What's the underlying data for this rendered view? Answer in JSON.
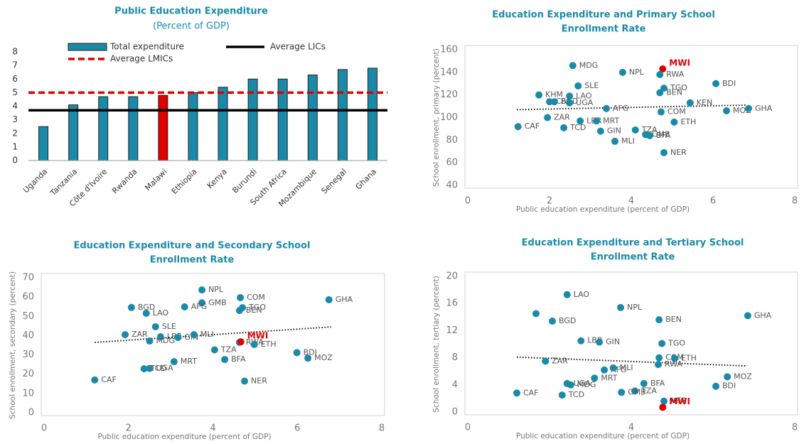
{
  "chart_data": [
    {
      "type": "bar",
      "title": [
        "Public Education Expenditure"
      ],
      "subtitle": "(Percent of GDP)",
      "categories": [
        "Uganda",
        "Tanzania",
        "Côte d'Ivoire",
        "Rwanda",
        "Malawi",
        "Ethiopia",
        "Kenya",
        "Burundi",
        "South Africa",
        "Mozambique",
        "Senegal",
        "Ghana"
      ],
      "series": [
        {
          "name": "Total expenditure",
          "color": "#1b8aa8",
          "values": [
            2.5,
            4.1,
            4.7,
            4.7,
            4.8,
            5.0,
            5.4,
            6.0,
            6.0,
            6.3,
            6.7,
            6.8
          ]
        }
      ],
      "highlight": "Malawi",
      "highlight_color": "#e00000",
      "reference_lines": [
        {
          "name": "Average LICs",
          "value": 3.7,
          "color": "#000000",
          "dashed": false
        },
        {
          "name": "Average LMICs",
          "value": 5.0,
          "color": "#e00000",
          "dashed": true
        }
      ],
      "ylim": [
        0,
        8
      ],
      "yticks": [
        0,
        1,
        2,
        3,
        4,
        5,
        6,
        7,
        8
      ]
    },
    {
      "type": "scatter",
      "title": [
        "Education Expenditure and Primary School",
        "Enrollment Rate"
      ],
      "xlabel": "Public education expenditure (percent of GDP)",
      "ylabel": "School enrollment, primary (percent)",
      "color": "#1b8aa8",
      "highlight": "MWI",
      "highlight_color": "#e00000",
      "point_labels": [
        "MDG",
        "MWI",
        "NPL",
        "RWA",
        "BDI",
        "SLE",
        "TGO",
        "BEN",
        "KHM",
        "LAO",
        "CIV",
        "BGD",
        "UGA",
        "KEN",
        "AFG",
        "COM",
        "MOZ",
        "GHA",
        "ZAR",
        "LBR",
        "MRT",
        "ETH",
        "CAF",
        "TCD",
        "GIN",
        "TZA",
        "GMB",
        "MLI",
        "BFA",
        "NER"
      ],
      "x": [
        2.57,
        4.77,
        3.79,
        4.7,
        6.07,
        2.7,
        4.8,
        4.7,
        1.74,
        2.49,
        2.0,
        2.12,
        2.49,
        5.44,
        3.39,
        4.73,
        6.33,
        6.87,
        1.95,
        2.75,
        3.15,
        5.05,
        1.23,
        2.35,
        3.25,
        4.1,
        4.35,
        3.6,
        4.45,
        4.8
      ],
      "values": [
        146,
        143,
        140,
        138,
        130,
        128,
        126,
        122,
        120,
        119,
        114,
        114,
        113,
        113,
        108,
        105,
        106,
        108,
        100,
        97,
        97,
        96,
        92,
        91,
        88,
        89,
        85,
        79,
        84,
        69
      ],
      "trend": {
        "x": [
          1.2,
          6.8
        ],
        "values": [
          107,
          111
        ]
      },
      "xlim": [
        0,
        8
      ],
      "xticks": [
        0,
        2,
        4,
        6,
        8
      ],
      "ylim": [
        40,
        160
      ],
      "yticks": [
        40,
        60,
        80,
        100,
        120,
        140,
        160
      ]
    },
    {
      "type": "scatter",
      "title": [
        "Education Expenditure and Secondary School",
        "Enrollment Rate"
      ],
      "xlabel": "Public education expenditure (percent of GDP)",
      "ylabel": "School enrollment, secondary (percent)",
      "color": "#1b8aa8",
      "highlight": "MWI",
      "highlight_color": "#e00000",
      "point_labels": [
        "NPL",
        "COM",
        "GHA",
        "GMB",
        "BGD",
        "AFG",
        "TGO",
        "BEN",
        "LAO",
        "SLE",
        "ZAR",
        "LBR",
        "MDG",
        "GIN",
        "MLI",
        "RWA",
        "MWI",
        "ETH",
        "TZA",
        "BDI",
        "MOZ",
        "BFA",
        "MRT",
        "UGA",
        "TCD",
        "CAF",
        "NER"
      ],
      "x": [
        3.74,
        4.65,
        6.75,
        3.74,
        2.07,
        3.33,
        4.7,
        4.63,
        2.42,
        2.64,
        1.92,
        2.76,
        2.5,
        3.17,
        3.55,
        4.63,
        4.66,
        4.98,
        4.04,
        5.99,
        6.25,
        4.28,
        3.08,
        2.5,
        2.37,
        1.2,
        4.75
      ],
      "values": [
        63.7,
        59.7,
        58.6,
        57,
        54.6,
        54.9,
        54.5,
        53,
        51.6,
        44.6,
        40.5,
        39.4,
        37.2,
        39,
        40.5,
        36.5,
        36.8,
        35.4,
        32.6,
        31.2,
        28.3,
        27.6,
        26.5,
        23,
        22.8,
        17,
        16.4
      ],
      "trend": {
        "x": [
          1.2,
          6.8
        ],
        "values": [
          36.5,
          44.5
        ]
      },
      "xlim": [
        0,
        8
      ],
      "xticks": [
        0,
        2,
        4,
        6,
        8
      ],
      "ylim": [
        0,
        70
      ],
      "yticks": [
        0,
        10,
        20,
        30,
        40,
        50,
        60,
        70
      ]
    },
    {
      "type": "scatter",
      "title": [
        "Education Expenditure and Tertiary School",
        "Enrollment Rate"
      ],
      "xlabel": "Public education expenditure (percent of GDP)",
      "ylabel": "School enrollment, tertiary (percent)",
      "color": "#1b8aa8",
      "highlight": "MWI",
      "highlight_color": "#e00000",
      "point_labels": [
        "LAO",
        "NPL",
        null,
        "GHA",
        "BEN",
        "BGD",
        "LBR",
        "GIN",
        "TGO",
        "COM",
        "ETH",
        "ZAR",
        "RWA",
        "AFG",
        "MLI",
        "MOZ",
        "MRT",
        "UGA",
        "MDG",
        "BFA",
        "BDI",
        "TZA",
        "GMB",
        "CAF",
        "TCD",
        "NER",
        "MWI"
      ],
      "x": [
        2.43,
        3.74,
        1.67,
        6.85,
        4.68,
        2.07,
        2.77,
        3.22,
        4.75,
        4.68,
        5.06,
        1.9,
        4.66,
        3.34,
        3.56,
        6.35,
        3.1,
        2.43,
        2.52,
        4.31,
        6.07,
        4.09,
        3.76,
        1.2,
        2.31,
        4.8,
        4.77
      ],
      "values": [
        17.3,
        15.4,
        14.5,
        14.2,
        13.6,
        13.4,
        10.5,
        10.3,
        10.1,
        8.0,
        7.9,
        7.5,
        7.0,
        6.2,
        6.5,
        5.2,
        5.0,
        4.2,
        4.0,
        4.2,
        3.8,
        3.1,
        2.9,
        2.8,
        2.5,
        1.6,
        0.7
      ],
      "trend": {
        "x": [
          1.2,
          6.8
        ],
        "values": [
          8.1,
          6.8
        ]
      },
      "xlim": [
        0,
        8
      ],
      "xticks": [
        0,
        4,
        8
      ],
      "ylim": [
        0,
        20
      ],
      "yticks": [
        0,
        4,
        8,
        12,
        16,
        20
      ]
    }
  ]
}
